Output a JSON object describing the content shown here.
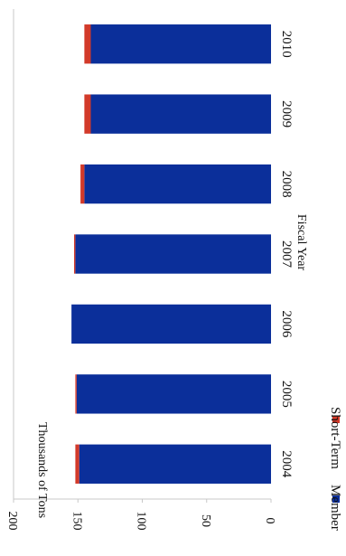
{
  "chart_data": {
    "type": "bar",
    "orientation": "rotated-90-cw",
    "stacked": true,
    "categories": [
      "2004",
      "2005",
      "2006",
      "2007",
      "2008",
      "2009",
      "2010"
    ],
    "series": [
      {
        "name": "Member",
        "color": "#0b2f9a",
        "values": [
          149,
          151,
          155,
          152,
          145,
          140,
          140
        ]
      },
      {
        "name": "Short-Term",
        "color": "#d23a2a",
        "values": [
          3,
          1,
          0,
          1,
          3,
          5,
          5
        ]
      }
    ],
    "xlabel": "Fiscal Year",
    "ylabel": "Thousands of Tons",
    "ylim": [
      0,
      200
    ],
    "yticks": [
      "0",
      "50",
      "100",
      "150",
      "200"
    ],
    "grid": false,
    "legend_position": "bottom"
  }
}
